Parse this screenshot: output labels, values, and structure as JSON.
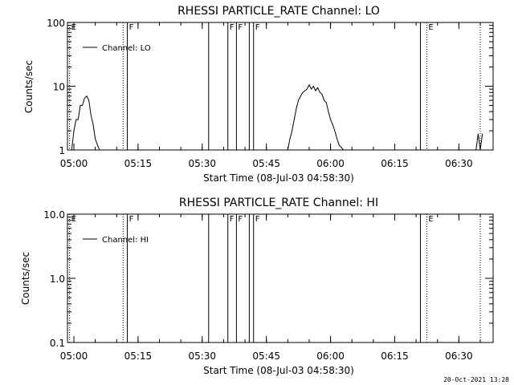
{
  "footer_timestamp": "20-Oct-2021 13:28",
  "chart_data": [
    {
      "type": "line",
      "title": "RHESSI PARTICLE_RATE Channel: LO",
      "xlabel": "Start Time (08-Jul-03 04:58:30)",
      "ylabel": "Counts/sec",
      "yscale": "log",
      "xlim": [
        "04:58:30",
        "06:38:00"
      ],
      "ylim": [
        1,
        100
      ],
      "x_ticks": [
        "05:00",
        "05:15",
        "05:30",
        "05:45",
        "06:00",
        "06:15",
        "06:30"
      ],
      "y_ticks": [
        "1",
        "10",
        "100"
      ],
      "legend": "Channel: LO",
      "legend_position": "top-left",
      "grid": false,
      "markers": [
        {
          "time": "04:59:00",
          "label": "E",
          "style": "dotted"
        },
        {
          "time": "05:11:30",
          "label": "",
          "style": "dotted"
        },
        {
          "time": "05:12:30",
          "label": "F",
          "style": "solid"
        },
        {
          "time": "05:31:30",
          "label": "",
          "style": "solid"
        },
        {
          "time": "05:36:00",
          "label": "F",
          "style": "solid"
        },
        {
          "time": "05:38:00",
          "label": "F",
          "style": "solid"
        },
        {
          "time": "05:41:00",
          "label": "",
          "style": "solid"
        },
        {
          "time": "05:42:00",
          "label": "F",
          "style": "solid"
        },
        {
          "time": "06:21:00",
          "label": "",
          "style": "solid"
        },
        {
          "time": "06:22:30",
          "label": "E",
          "style": "dotted"
        },
        {
          "time": "06:35:00",
          "label": "",
          "style": "dotted"
        }
      ],
      "series": [
        {
          "name": "Channel: LO",
          "segments": [
            {
              "x": [
                "04:59:30",
                "05:00:00",
                "05:00:30",
                "05:01:00",
                "05:01:30",
                "05:02:00",
                "05:02:30",
                "05:03:00",
                "05:03:30",
                "05:04:00",
                "05:04:30",
                "05:05:00",
                "05:05:30",
                "05:06:00"
              ],
              "y": [
                1.0,
                2.0,
                3.0,
                3.0,
                5.0,
                5.0,
                6.5,
                7.0,
                6.0,
                3.5,
                2.5,
                1.5,
                1.2,
                1.0
              ]
            },
            {
              "x": [
                "05:50:00",
                "05:50:30",
                "05:51:00",
                "05:51:30",
                "05:52:00",
                "05:52:30",
                "05:53:00",
                "05:53:30",
                "05:54:00",
                "05:54:30",
                "05:55:00",
                "05:55:30",
                "05:56:00",
                "05:56:30",
                "05:57:00",
                "05:57:30",
                "05:58:00",
                "05:58:30",
                "05:59:00",
                "05:59:30",
                "06:00:00",
                "06:00:30",
                "06:01:00",
                "06:01:30",
                "06:02:00",
                "06:02:30",
                "06:03:00"
              ],
              "y": [
                1.0,
                1.5,
                2.0,
                3.0,
                4.5,
                6.0,
                7.0,
                8.0,
                8.5,
                9.0,
                10.5,
                9.0,
                10.0,
                8.5,
                9.5,
                8.0,
                7.5,
                6.0,
                5.5,
                4.0,
                3.0,
                2.5,
                2.0,
                1.5,
                1.2,
                1.1,
                1.0
              ]
            },
            {
              "x": [
                "06:34:00",
                "06:34:30",
                "06:35:00",
                "06:35:30"
              ],
              "y": [
                1.0,
                1.8,
                1.0,
                1.8
              ]
            }
          ]
        }
      ]
    },
    {
      "type": "line",
      "title": "RHESSI PARTICLE_RATE Channel: HI",
      "xlabel": "Start Time (08-Jul-03 04:58:30)",
      "ylabel": "Counts/sec",
      "yscale": "log",
      "xlim": [
        "04:58:30",
        "06:38:00"
      ],
      "ylim": [
        0.1,
        10
      ],
      "x_ticks": [
        "05:00",
        "05:15",
        "05:30",
        "05:45",
        "06:00",
        "06:15",
        "06:30"
      ],
      "y_ticks": [
        "0.1",
        "1.0",
        "10.0"
      ],
      "legend": "Channel: HI",
      "legend_position": "top-left",
      "grid": false,
      "markers": [
        {
          "time": "04:59:00",
          "label": "E",
          "style": "dotted"
        },
        {
          "time": "05:11:30",
          "label": "",
          "style": "dotted"
        },
        {
          "time": "05:12:30",
          "label": "F",
          "style": "solid"
        },
        {
          "time": "05:31:30",
          "label": "",
          "style": "solid"
        },
        {
          "time": "05:36:00",
          "label": "F",
          "style": "solid"
        },
        {
          "time": "05:38:00",
          "label": "F",
          "style": "solid"
        },
        {
          "time": "05:41:00",
          "label": "",
          "style": "solid"
        },
        {
          "time": "05:42:00",
          "label": "F",
          "style": "solid"
        },
        {
          "time": "06:21:00",
          "label": "",
          "style": "solid"
        },
        {
          "time": "06:22:30",
          "label": "E",
          "style": "dotted"
        },
        {
          "time": "06:35:00",
          "label": "",
          "style": "dotted"
        }
      ],
      "series": [
        {
          "name": "Channel: HI",
          "segments": []
        }
      ]
    }
  ]
}
